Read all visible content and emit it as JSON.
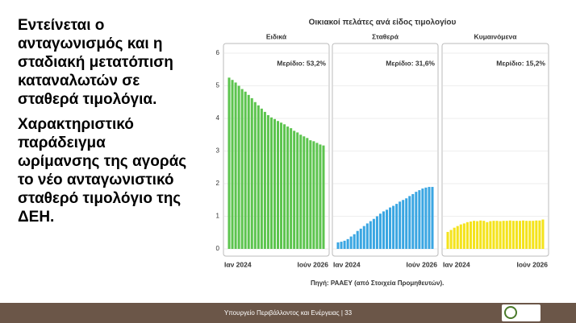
{
  "slide": {
    "paragraphs": [
      "Εντείνεται ο ανταγωνισμός και η σταδιακή μετατόπιση καταναλωτών σε σταθερά τιμολόγια.",
      "Χαρακτηριστικό παράδειγμα ωρίμανσης της αγοράς το νέο ανταγωνιστικό σταθερό τιμολόγιο της ΔΕΗ."
    ],
    "footer": "Υπουργείο Περιβάλλοντος και Ενέργειας | 33"
  },
  "figure": {
    "title": "Οικιακοί πελάτες ανά είδος τιμολογίου",
    "source": "Πηγή: ΡΑΑΕΥ (από Στοιχεία Προμηθευτών)."
  },
  "chart_data": [
    {
      "type": "bar",
      "title": "Ειδικά",
      "annotation": "Μερίδιο: 53,2%",
      "color": "#5cc44e",
      "categories": [
        "Ιαν 2024",
        null,
        null,
        null,
        null,
        null,
        null,
        null,
        null,
        null,
        null,
        null,
        null,
        null,
        null,
        null,
        null,
        null,
        null,
        null,
        null,
        null,
        null,
        null,
        null,
        null,
        null,
        null,
        null,
        "Ιούν 2026"
      ],
      "values": [
        5.25,
        5.18,
        5.1,
        5.0,
        4.9,
        4.82,
        4.72,
        4.62,
        4.5,
        4.4,
        4.3,
        4.2,
        4.1,
        4.03,
        3.98,
        3.92,
        3.87,
        3.82,
        3.75,
        3.7,
        3.62,
        3.57,
        3.5,
        3.45,
        3.4,
        3.33,
        3.3,
        3.25,
        3.2,
        3.17
      ],
      "ylim": [
        0,
        6
      ],
      "yticks": [
        0,
        1,
        2,
        3,
        4,
        5,
        6
      ],
      "grid": true
    },
    {
      "type": "bar",
      "title": "Σταθερά",
      "annotation": "Μερίδιο: 31,6%",
      "color": "#3aa6e2",
      "categories": [
        "Ιαν 2024",
        null,
        null,
        null,
        null,
        null,
        null,
        null,
        null,
        null,
        null,
        null,
        null,
        null,
        null,
        null,
        null,
        null,
        null,
        null,
        null,
        null,
        null,
        null,
        null,
        null,
        null,
        null,
        null,
        "Ιούν 2026"
      ],
      "values": [
        0.2,
        0.22,
        0.25,
        0.3,
        0.38,
        0.45,
        0.55,
        0.62,
        0.7,
        0.78,
        0.85,
        0.92,
        1.0,
        1.08,
        1.15,
        1.2,
        1.27,
        1.32,
        1.38,
        1.45,
        1.5,
        1.55,
        1.62,
        1.68,
        1.75,
        1.8,
        1.85,
        1.88,
        1.9,
        1.9
      ],
      "ylim": [
        0,
        6
      ],
      "grid": true
    },
    {
      "type": "bar",
      "title": "Κυμαινόμενα",
      "annotation": "Μερίδιο: 15,2%",
      "color": "#f4e31c",
      "categories": [
        "Ιαν 2024",
        null,
        null,
        null,
        null,
        null,
        null,
        null,
        null,
        null,
        null,
        null,
        null,
        null,
        null,
        null,
        null,
        null,
        null,
        null,
        null,
        null,
        null,
        null,
        null,
        null,
        null,
        null,
        null,
        "Ιούν 2026"
      ],
      "values": [
        0.52,
        0.58,
        0.65,
        0.7,
        0.75,
        0.78,
        0.82,
        0.84,
        0.86,
        0.85,
        0.87,
        0.86,
        0.82,
        0.85,
        0.86,
        0.86,
        0.85,
        0.86,
        0.86,
        0.87,
        0.86,
        0.86,
        0.86,
        0.87,
        0.86,
        0.86,
        0.86,
        0.87,
        0.87,
        0.9
      ],
      "ylim": [
        0,
        6
      ],
      "grid": true
    }
  ]
}
